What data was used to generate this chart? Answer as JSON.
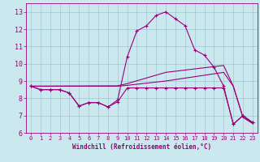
{
  "xlabel": "Windchill (Refroidissement éolien,°C)",
  "background_color": "#cce8ef",
  "grid_color": "#9dc8d4",
  "line_color": "#990077",
  "xlim": [
    -0.5,
    23.5
  ],
  "ylim": [
    6.0,
    13.5
  ],
  "yticks": [
    6,
    7,
    8,
    9,
    10,
    11,
    12,
    13
  ],
  "xticks": [
    0,
    1,
    2,
    3,
    4,
    5,
    6,
    7,
    8,
    9,
    10,
    11,
    12,
    13,
    14,
    15,
    16,
    17,
    18,
    19,
    20,
    21,
    22,
    23
  ],
  "line1_x": [
    0,
    1,
    2,
    3,
    4,
    5,
    6,
    7,
    8,
    9,
    10,
    11,
    12,
    13,
    14,
    15,
    16,
    17,
    18,
    19,
    20,
    21,
    22,
    23
  ],
  "line1_y": [
    8.7,
    8.5,
    8.5,
    8.5,
    8.3,
    7.55,
    7.75,
    7.75,
    7.5,
    7.8,
    8.6,
    8.6,
    8.6,
    8.6,
    8.6,
    8.6,
    8.6,
    8.6,
    8.6,
    8.6,
    8.6,
    6.5,
    7.0,
    6.6
  ],
  "line2_x": [
    0,
    1,
    2,
    3,
    4,
    5,
    6,
    7,
    8,
    9,
    10,
    11,
    12,
    13,
    14,
    15,
    16,
    17,
    18,
    19,
    20,
    21,
    22,
    23
  ],
  "line2_y": [
    8.7,
    8.5,
    8.5,
    8.5,
    8.3,
    7.55,
    7.75,
    7.75,
    7.5,
    7.9,
    10.4,
    11.9,
    12.2,
    12.8,
    13.0,
    12.6,
    12.2,
    10.8,
    10.5,
    9.8,
    8.7,
    6.5,
    7.0,
    6.6
  ],
  "line3_x": [
    0,
    9,
    10,
    14,
    20,
    21,
    22,
    23
  ],
  "line3_y": [
    8.7,
    8.7,
    8.75,
    9.0,
    9.5,
    8.7,
    6.9,
    6.55
  ],
  "line4_x": [
    0,
    9,
    10,
    14,
    20,
    21,
    22,
    23
  ],
  "line4_y": [
    8.7,
    8.72,
    8.85,
    9.5,
    9.9,
    8.7,
    6.9,
    6.55
  ]
}
